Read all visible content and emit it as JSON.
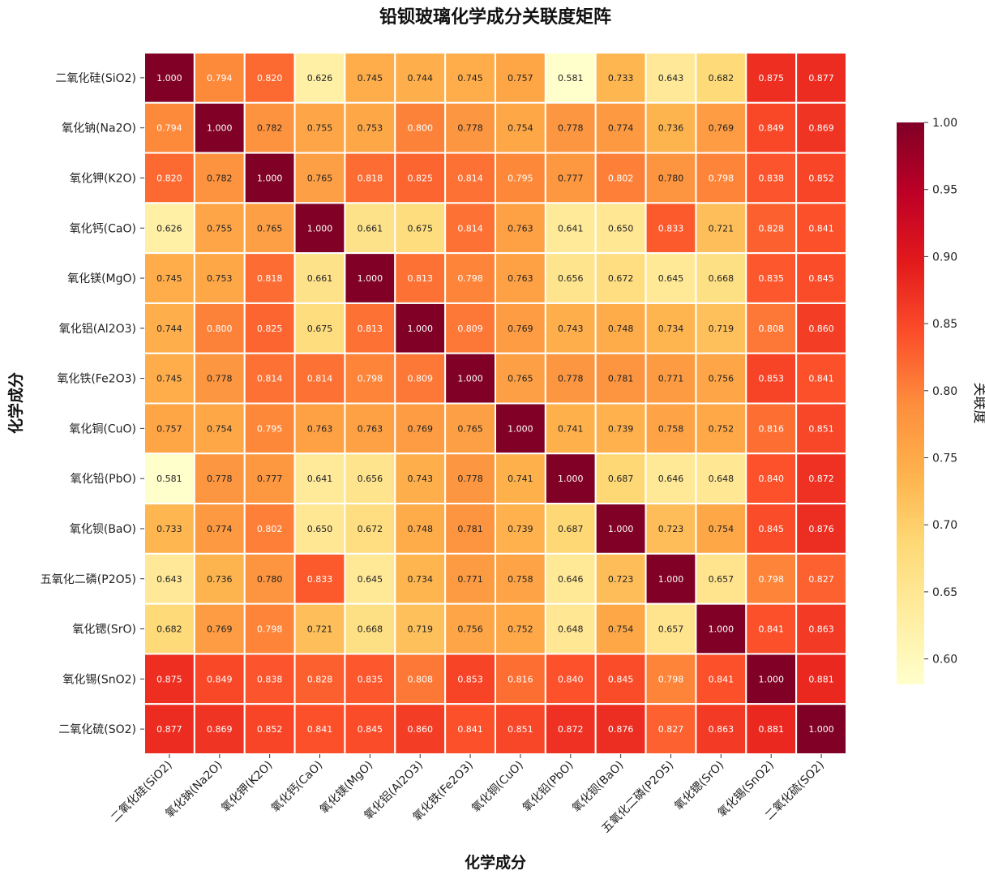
{
  "chart_data": {
    "type": "heatmap",
    "title": "铅钡玻璃化学成分关联度矩阵",
    "xlabel": "化学成分",
    "ylabel": "化学成分",
    "colorbar_label": "关联度",
    "colorbar_ticks": [
      "0.60",
      "0.65",
      "0.70",
      "0.75",
      "0.80",
      "0.85",
      "0.90",
      "0.95",
      "1.00"
    ],
    "vmin": 0.581,
    "vmax": 1.0,
    "colormap": [
      "#ffffcc",
      "#ffeda0",
      "#fed976",
      "#feb24c",
      "#fd8d3c",
      "#fc4e2a",
      "#e31a1c",
      "#bd0026",
      "#800026"
    ],
    "categories": [
      "二氧化硅(SiO2)",
      "氧化钠(Na2O)",
      "氧化钾(K2O)",
      "氧化钙(CaO)",
      "氧化镁(MgO)",
      "氧化铝(Al2O3)",
      "氧化铁(Fe2O3)",
      "氧化铜(CuO)",
      "氧化铅(PbO)",
      "氧化钡(BaO)",
      "五氧化二磷(P2O5)",
      "氧化锶(SrO)",
      "氧化锡(SnO2)",
      "二氧化硫(SO2)"
    ],
    "values": [
      [
        1.0,
        0.794,
        0.82,
        0.626,
        0.745,
        0.744,
        0.745,
        0.757,
        0.581,
        0.733,
        0.643,
        0.682,
        0.875,
        0.877
      ],
      [
        0.794,
        1.0,
        0.782,
        0.755,
        0.753,
        0.8,
        0.778,
        0.754,
        0.778,
        0.774,
        0.736,
        0.769,
        0.849,
        0.869
      ],
      [
        0.82,
        0.782,
        1.0,
        0.765,
        0.818,
        0.825,
        0.814,
        0.795,
        0.777,
        0.802,
        0.78,
        0.798,
        0.838,
        0.852
      ],
      [
        0.626,
        0.755,
        0.765,
        1.0,
        0.661,
        0.675,
        0.814,
        0.763,
        0.641,
        0.65,
        0.833,
        0.721,
        0.828,
        0.841
      ],
      [
        0.745,
        0.753,
        0.818,
        0.661,
        1.0,
        0.813,
        0.798,
        0.763,
        0.656,
        0.672,
        0.645,
        0.668,
        0.835,
        0.845
      ],
      [
        0.744,
        0.8,
        0.825,
        0.675,
        0.813,
        1.0,
        0.809,
        0.769,
        0.743,
        0.748,
        0.734,
        0.719,
        0.808,
        0.86
      ],
      [
        0.745,
        0.778,
        0.814,
        0.814,
        0.798,
        0.809,
        1.0,
        0.765,
        0.778,
        0.781,
        0.771,
        0.756,
        0.853,
        0.841
      ],
      [
        0.757,
        0.754,
        0.795,
        0.763,
        0.763,
        0.769,
        0.765,
        1.0,
        0.741,
        0.739,
        0.758,
        0.752,
        0.816,
        0.851
      ],
      [
        0.581,
        0.778,
        0.777,
        0.641,
        0.656,
        0.743,
        0.778,
        0.741,
        1.0,
        0.687,
        0.646,
        0.648,
        0.84,
        0.872
      ],
      [
        0.733,
        0.774,
        0.802,
        0.65,
        0.672,
        0.748,
        0.781,
        0.739,
        0.687,
        1.0,
        0.723,
        0.754,
        0.845,
        0.876
      ],
      [
        0.643,
        0.736,
        0.78,
        0.833,
        0.645,
        0.734,
        0.771,
        0.758,
        0.646,
        0.723,
        1.0,
        0.657,
        0.798,
        0.827
      ],
      [
        0.682,
        0.769,
        0.798,
        0.721,
        0.668,
        0.719,
        0.756,
        0.752,
        0.648,
        0.754,
        0.657,
        1.0,
        0.841,
        0.863
      ],
      [
        0.875,
        0.849,
        0.838,
        0.828,
        0.835,
        0.808,
        0.853,
        0.816,
        0.84,
        0.845,
        0.798,
        0.841,
        1.0,
        0.881
      ],
      [
        0.877,
        0.869,
        0.852,
        0.841,
        0.845,
        0.86,
        0.841,
        0.851,
        0.872,
        0.876,
        0.827,
        0.863,
        0.881,
        1.0
      ]
    ]
  }
}
